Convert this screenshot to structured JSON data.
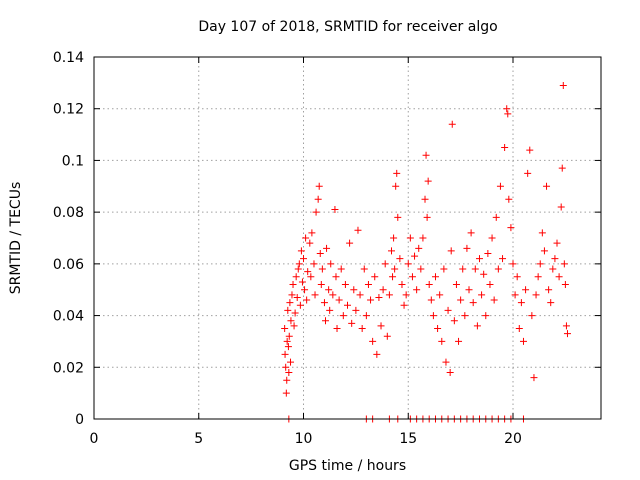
{
  "chart_data": {
    "type": "scatter",
    "title": "Day 107 of 2018, SRMTID for receiver algo",
    "xlabel": "GPS time / hours",
    "ylabel": "SRMTID / TECUs",
    "xlim": [
      0,
      24.2
    ],
    "ylim": [
      0,
      0.14
    ],
    "xticks": [
      0,
      5,
      10,
      15,
      20
    ],
    "yticks": [
      0,
      0.02,
      0.04,
      0.06,
      0.08,
      0.1,
      0.12,
      0.14
    ],
    "xtick_labels": [
      "0",
      "5",
      "10",
      "15",
      "20"
    ],
    "ytick_labels": [
      "0",
      "0.02",
      "0.04",
      "0.06",
      "0.08",
      "0.1",
      "0.12",
      "0.14"
    ],
    "grid": true,
    "marker": "+",
    "color": "#ff0000",
    "series": [
      {
        "name": "SRMTID",
        "points": [
          [
            9.1,
            0.035
          ],
          [
            9.12,
            0.025
          ],
          [
            9.15,
            0.02
          ],
          [
            9.18,
            0.01
          ],
          [
            9.2,
            0.015
          ],
          [
            9.22,
            0.03
          ],
          [
            9.25,
            0.042
          ],
          [
            9.28,
            0.028
          ],
          [
            9.3,
            0.018
          ],
          [
            9.32,
            0.032
          ],
          [
            9.35,
            0.045
          ],
          [
            9.38,
            0.022
          ],
          [
            9.4,
            0.038
          ],
          [
            9.45,
            0.048
          ],
          [
            9.5,
            0.052
          ],
          [
            9.55,
            0.036
          ],
          [
            9.6,
            0.041
          ],
          [
            9.65,
            0.055
          ],
          [
            9.7,
            0.047
          ],
          [
            9.75,
            0.058
          ],
          [
            9.8,
            0.06
          ],
          [
            9.85,
            0.044
          ],
          [
            9.9,
            0.065
          ],
          [
            9.95,
            0.053
          ],
          [
            10.0,
            0.062
          ],
          [
            10.05,
            0.05
          ],
          [
            10.1,
            0.07
          ],
          [
            10.15,
            0.046
          ],
          [
            10.2,
            0.057
          ],
          [
            10.3,
            0.068
          ],
          [
            10.35,
            0.055
          ],
          [
            10.4,
            0.072
          ],
          [
            10.5,
            0.06
          ],
          [
            10.55,
            0.048
          ],
          [
            10.6,
            0.08
          ],
          [
            10.7,
            0.085
          ],
          [
            10.75,
            0.09
          ],
          [
            10.8,
            0.064
          ],
          [
            10.85,
            0.052
          ],
          [
            10.9,
            0.058
          ],
          [
            11.0,
            0.045
          ],
          [
            11.05,
            0.038
          ],
          [
            11.1,
            0.066
          ],
          [
            11.2,
            0.05
          ],
          [
            11.25,
            0.042
          ],
          [
            11.3,
            0.06
          ],
          [
            11.4,
            0.048
          ],
          [
            11.5,
            0.081
          ],
          [
            11.55,
            0.055
          ],
          [
            11.6,
            0.035
          ],
          [
            11.7,
            0.046
          ],
          [
            11.8,
            0.058
          ],
          [
            11.9,
            0.04
          ],
          [
            12.0,
            0.052
          ],
          [
            12.1,
            0.044
          ],
          [
            12.2,
            0.068
          ],
          [
            12.3,
            0.037
          ],
          [
            12.4,
            0.05
          ],
          [
            12.5,
            0.042
          ],
          [
            12.6,
            0.073
          ],
          [
            12.7,
            0.048
          ],
          [
            12.8,
            0.035
          ],
          [
            12.9,
            0.058
          ],
          [
            13.0,
            0.04
          ],
          [
            13.1,
            0.052
          ],
          [
            13.2,
            0.046
          ],
          [
            13.3,
            0.03
          ],
          [
            13.4,
            0.055
          ],
          [
            13.5,
            0.025
          ],
          [
            13.6,
            0.047
          ],
          [
            13.7,
            0.036
          ],
          [
            13.8,
            0.05
          ],
          [
            13.9,
            0.06
          ],
          [
            14.0,
            0.032
          ],
          [
            14.1,
            0.048
          ],
          [
            14.2,
            0.065
          ],
          [
            14.25,
            0.055
          ],
          [
            14.3,
            0.07
          ],
          [
            14.35,
            0.058
          ],
          [
            14.4,
            0.09
          ],
          [
            14.45,
            0.095
          ],
          [
            14.5,
            0.078
          ],
          [
            14.6,
            0.062
          ],
          [
            14.7,
            0.052
          ],
          [
            14.8,
            0.044
          ],
          [
            14.9,
            0.048
          ],
          [
            15.0,
            0.06
          ],
          [
            15.1,
            0.07
          ],
          [
            15.2,
            0.055
          ],
          [
            15.3,
            0.063
          ],
          [
            15.4,
            0.05
          ],
          [
            15.5,
            0.066
          ],
          [
            15.6,
            0.058
          ],
          [
            15.7,
            0.07
          ],
          [
            15.8,
            0.085
          ],
          [
            15.85,
            0.102
          ],
          [
            15.9,
            0.078
          ],
          [
            15.95,
            0.092
          ],
          [
            16.0,
            0.052
          ],
          [
            16.1,
            0.046
          ],
          [
            16.2,
            0.04
          ],
          [
            16.3,
            0.055
          ],
          [
            16.4,
            0.035
          ],
          [
            16.5,
            0.048
          ],
          [
            16.6,
            0.03
          ],
          [
            16.7,
            0.058
          ],
          [
            16.8,
            0.022
          ],
          [
            16.9,
            0.042
          ],
          [
            17.0,
            0.018
          ],
          [
            17.05,
            0.065
          ],
          [
            17.1,
            0.114
          ],
          [
            17.2,
            0.038
          ],
          [
            17.3,
            0.052
          ],
          [
            17.4,
            0.03
          ],
          [
            17.5,
            0.046
          ],
          [
            17.6,
            0.058
          ],
          [
            17.7,
            0.04
          ],
          [
            17.8,
            0.066
          ],
          [
            17.9,
            0.05
          ],
          [
            18.0,
            0.072
          ],
          [
            18.1,
            0.045
          ],
          [
            18.2,
            0.058
          ],
          [
            18.3,
            0.036
          ],
          [
            18.4,
            0.062
          ],
          [
            18.5,
            0.048
          ],
          [
            18.6,
            0.056
          ],
          [
            18.7,
            0.04
          ],
          [
            18.8,
            0.064
          ],
          [
            18.9,
            0.052
          ],
          [
            19.0,
            0.07
          ],
          [
            19.1,
            0.046
          ],
          [
            19.2,
            0.078
          ],
          [
            19.3,
            0.058
          ],
          [
            19.4,
            0.09
          ],
          [
            19.5,
            0.062
          ],
          [
            19.6,
            0.105
          ],
          [
            19.7,
            0.12
          ],
          [
            19.75,
            0.118
          ],
          [
            19.8,
            0.085
          ],
          [
            19.9,
            0.074
          ],
          [
            20.0,
            0.06
          ],
          [
            20.1,
            0.048
          ],
          [
            20.2,
            0.055
          ],
          [
            20.3,
            0.035
          ],
          [
            20.4,
            0.045
          ],
          [
            20.5,
            0.03
          ],
          [
            20.6,
            0.05
          ],
          [
            20.7,
            0.095
          ],
          [
            20.8,
            0.104
          ],
          [
            20.9,
            0.04
          ],
          [
            21.0,
            0.016
          ],
          [
            21.1,
            0.048
          ],
          [
            21.2,
            0.055
          ],
          [
            21.3,
            0.06
          ],
          [
            21.4,
            0.072
          ],
          [
            21.5,
            0.065
          ],
          [
            21.6,
            0.09
          ],
          [
            21.7,
            0.05
          ],
          [
            21.8,
            0.045
          ],
          [
            21.9,
            0.058
          ],
          [
            22.0,
            0.062
          ],
          [
            22.1,
            0.068
          ],
          [
            22.2,
            0.055
          ],
          [
            22.3,
            0.082
          ],
          [
            22.35,
            0.097
          ],
          [
            22.4,
            0.129
          ],
          [
            22.45,
            0.06
          ],
          [
            22.5,
            0.052
          ],
          [
            22.55,
            0.036
          ],
          [
            22.6,
            0.033
          ],
          [
            9.3,
            0.0
          ],
          [
            13.0,
            0.0
          ],
          [
            13.3,
            0.0
          ],
          [
            14.1,
            0.0
          ],
          [
            14.5,
            0.0
          ],
          [
            15.1,
            0.0
          ],
          [
            15.4,
            0.0
          ],
          [
            15.7,
            0.0
          ],
          [
            16.0,
            0.0
          ],
          [
            16.3,
            0.0
          ],
          [
            16.6,
            0.0
          ],
          [
            16.9,
            0.0
          ],
          [
            17.2,
            0.0
          ],
          [
            17.5,
            0.0
          ],
          [
            17.8,
            0.0
          ],
          [
            18.1,
            0.0
          ],
          [
            18.4,
            0.0
          ],
          [
            18.7,
            0.0
          ],
          [
            19.0,
            0.0
          ],
          [
            19.3,
            0.0
          ],
          [
            19.6,
            0.0
          ],
          [
            19.9,
            0.0
          ],
          [
            20.5,
            0.0
          ]
        ]
      }
    ]
  }
}
